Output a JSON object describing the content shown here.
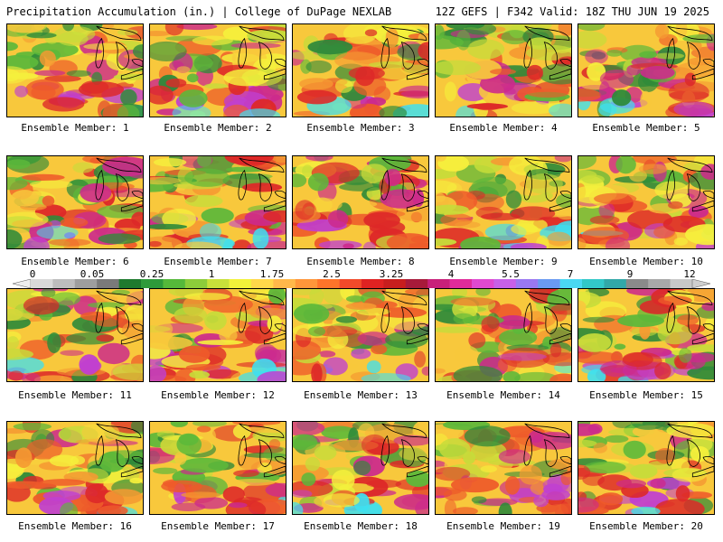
{
  "header": {
    "left": "Precipitation Accumulation (in.) | College of DuPage NEXLAB",
    "right": "12Z GEFS | F342 Valid: 18Z THU JUN 19 2025"
  },
  "members": [
    {
      "label": "Ensemble Member: 1"
    },
    {
      "label": "Ensemble Member: 2"
    },
    {
      "label": "Ensemble Member: 3"
    },
    {
      "label": "Ensemble Member: 4"
    },
    {
      "label": "Ensemble Member: 5"
    },
    {
      "label": "Ensemble Member: 6"
    },
    {
      "label": "Ensemble Member: 7"
    },
    {
      "label": "Ensemble Member: 8"
    },
    {
      "label": "Ensemble Member: 9"
    },
    {
      "label": "Ensemble Member: 10"
    },
    {
      "label": "Ensemble Member: 11"
    },
    {
      "label": "Ensemble Member: 12"
    },
    {
      "label": "Ensemble Member: 13"
    },
    {
      "label": "Ensemble Member: 14"
    },
    {
      "label": "Ensemble Member: 15"
    },
    {
      "label": "Ensemble Member: 16"
    },
    {
      "label": "Ensemble Member: 17"
    },
    {
      "label": "Ensemble Member: 18"
    },
    {
      "label": "Ensemble Member: 19"
    },
    {
      "label": "Ensemble Member: 20"
    }
  ],
  "colorbar": {
    "tick_labels": [
      "0",
      "0.05",
      "0.25",
      "1",
      "1.75",
      "2.5",
      "3.25",
      "4",
      "5.5",
      "7",
      "9",
      "12"
    ],
    "colors": [
      "#d9d9d9",
      "#bdbdbd",
      "#9e9e9e",
      "#7a7a7a",
      "#1e7a2e",
      "#2e9a3a",
      "#55b83a",
      "#8ccc3a",
      "#c8e03a",
      "#f2f23a",
      "#ffd84a",
      "#ffb84a",
      "#ff963a",
      "#ff742a",
      "#f24a2a",
      "#e02222",
      "#c81e1e",
      "#a81a3a",
      "#c8207a",
      "#e02a9a",
      "#e048d0",
      "#c860e8",
      "#9a78f2",
      "#6a9af2",
      "#4ad8f2",
      "#32c8c8",
      "#32a8a8",
      "#8a8a8a",
      "#a8a8a8",
      "#c8c8c8"
    ]
  },
  "map_palette": {
    "green_dark": "#2e8a3a",
    "green": "#5cb83a",
    "yellow_green": "#c6dc3a",
    "yellow": "#f5f03c",
    "orange_light": "#f8c83c",
    "orange": "#f59a32",
    "red_orange": "#ee5a2a",
    "red": "#dd2828",
    "magenta": "#cc2a8c",
    "purple": "#c040d0",
    "cyan": "#3ee0f0"
  }
}
